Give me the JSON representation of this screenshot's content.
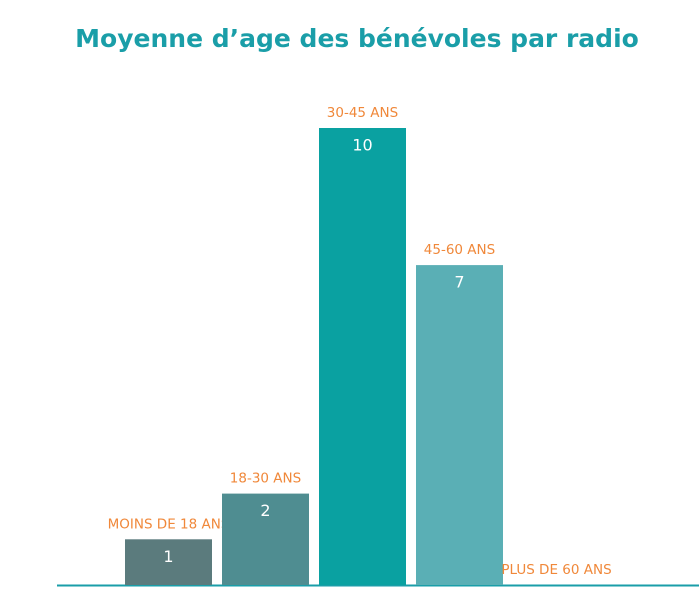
{
  "chart_data": {
    "type": "bar",
    "title": "Moyenne d’age des bénévoles par radio",
    "categories": [
      "MOINS DE 18 ANS",
      "18-30 ANS",
      "30-45 ANS",
      "45-60 ANS",
      "PLUS DE 60 ANS"
    ],
    "values": [
      1,
      2,
      10,
      7,
      0
    ],
    "colors": [
      "#5b7b7d",
      "#4f8d91",
      "#0aa1a1",
      "#5aafb5",
      "#6fbcc0"
    ],
    "ylim": [
      0,
      10
    ]
  }
}
